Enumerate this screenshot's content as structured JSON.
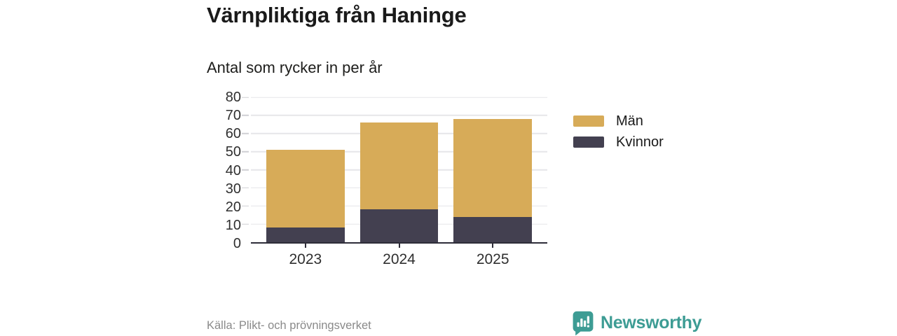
{
  "header": {
    "title": "Värnpliktiga från Haninge",
    "subtitle": "Antal som rycker in per år"
  },
  "chart_data": {
    "type": "bar",
    "stacked": true,
    "title": "Värnpliktiga från Haninge",
    "subtitle": "Antal som rycker in per år",
    "categories": [
      "2023",
      "2024",
      "2025"
    ],
    "series": [
      {
        "name": "Män",
        "color": "#d7ab58",
        "values": [
          43,
          48,
          54
        ]
      },
      {
        "name": "Kvinnor",
        "color": "#434050",
        "values": [
          8,
          18,
          14
        ]
      }
    ],
    "stack_totals": [
      51,
      66,
      68
    ],
    "xlabel": "",
    "ylabel": "",
    "ylim": [
      0,
      80
    ],
    "ytick_step": 10,
    "grid": true,
    "legend_position": "right"
  },
  "footer": {
    "source": "Källa: Plikt- och prövningsverket",
    "brand_name": "Newsworthy"
  },
  "colors": {
    "men": "#d7ab58",
    "women": "#434050",
    "brand_teal": "#3d9c94",
    "gridline": "#e6e6e9",
    "axis": "#2e2d39",
    "text": "#1a1a1a",
    "muted_text": "#8a8a8a"
  }
}
